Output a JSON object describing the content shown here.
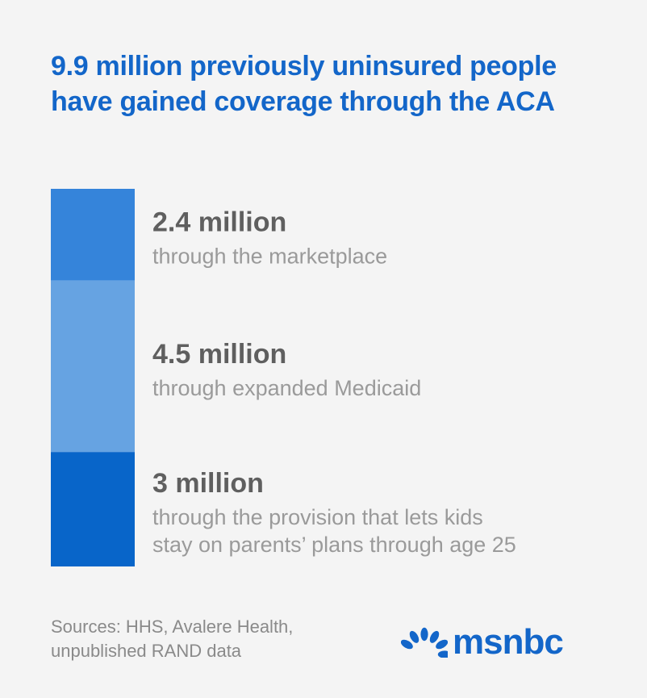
{
  "title": "9.9 million previously uninsured people have gained coverage through the ACA",
  "chart_data": {
    "type": "bar",
    "stacked": true,
    "orientation": "vertical",
    "total": 9.9,
    "unit": "million",
    "segments": [
      {
        "value": 2.4,
        "value_label": "2.4 million",
        "description": [
          "through the marketplace"
        ],
        "color": "#3584da"
      },
      {
        "value": 4.5,
        "value_label": "4.5 million",
        "description": [
          "through expanded Medicaid"
        ],
        "color": "#66a3e2"
      },
      {
        "value": 3,
        "value_label": "3 million",
        "description": [
          "through the provision that lets kids",
          "stay on parents’ plans through age 25"
        ],
        "color": "#0865c9"
      }
    ]
  },
  "source": {
    "line1": "Sources: HHS, Avalere Health,",
    "line2": "unpublished RAND data"
  },
  "logo": {
    "text": "msnbc",
    "icon": "peacock-icon",
    "color": "#1366c9"
  }
}
